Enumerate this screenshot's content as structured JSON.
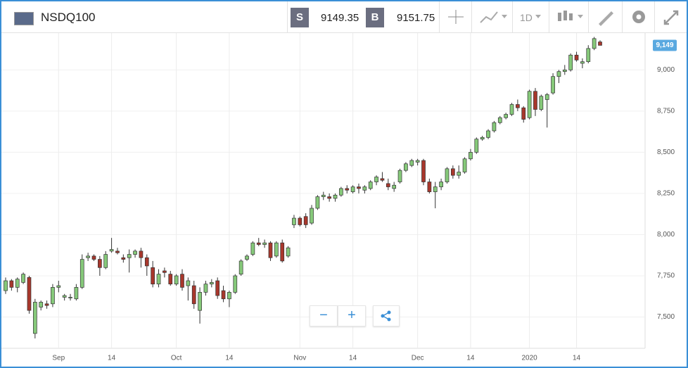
{
  "toolbar": {
    "symbol": "NSDQ100",
    "sell_letter": "S",
    "sell_price": "9149.35",
    "buy_letter": "B",
    "buy_price": "9151.75",
    "timeframe": "1D"
  },
  "chart_data": {
    "type": "candlestick",
    "categories": [
      null,
      null,
      null,
      null,
      null,
      null,
      null,
      null,
      null,
      "Sep",
      null,
      null,
      null,
      null,
      null,
      null,
      null,
      null,
      "14",
      null,
      null,
      null,
      null,
      null,
      null,
      null,
      null,
      null,
      null,
      "Oct",
      null,
      null,
      null,
      null,
      null,
      null,
      null,
      null,
      "14",
      null,
      null,
      null,
      null,
      null,
      null,
      null,
      null,
      null,
      null,
      null,
      "Nov",
      null,
      null,
      null,
      null,
      null,
      null,
      null,
      null,
      "14",
      null,
      null,
      null,
      null,
      null,
      null,
      null,
      null,
      null,
      null,
      "Dec",
      null,
      null,
      null,
      null,
      null,
      null,
      null,
      null,
      "14",
      null,
      null,
      null,
      null,
      null,
      null,
      null,
      null,
      null,
      "2020",
      null,
      null,
      null,
      null,
      null,
      null,
      null,
      "14",
      null,
      null,
      null,
      null
    ],
    "open": [
      7660,
      7720,
      7680,
      7710,
      7740,
      7400,
      7560,
      7580,
      7580,
      7680,
      7620,
      7620,
      7610,
      7680,
      7860,
      7870,
      7850,
      7800,
      7900,
      7900,
      7860,
      7860,
      7880,
      7900,
      7860,
      7800,
      7700,
      7780,
      7760,
      7700,
      7760,
      7690,
      7690,
      7540,
      7650,
      7700,
      7720,
      7660,
      7610,
      7650,
      7760,
      7850,
      7880,
      7950,
      7940,
      7950,
      7870,
      7950,
      7870,
      8060,
      8100,
      8110,
      8070,
      8160,
      8230,
      8230,
      8220,
      8240,
      8280,
      8260,
      8290,
      8270,
      8280,
      8320,
      8340,
      8310,
      8280,
      8320,
      8390,
      8420,
      8440,
      8450,
      8320,
      8260,
      8290,
      8320,
      8400,
      8360,
      8380,
      8460,
      8500,
      8580,
      8590,
      8630,
      8680,
      8710,
      8730,
      8790,
      8770,
      8710,
      8870,
      8760,
      8820,
      8860,
      8960,
      8990,
      9000,
      9090,
      9040,
      9050,
      9130,
      9170
    ],
    "high": [
      7740,
      7730,
      7740,
      7770,
      7750,
      7610,
      7600,
      7600,
      7700,
      7720,
      7640,
      7640,
      7700,
      7880,
      7890,
      7880,
      7870,
      7900,
      7980,
      7920,
      7880,
      7910,
      7910,
      7920,
      7880,
      7840,
      7790,
      7800,
      7780,
      7760,
      7790,
      7740,
      7720,
      7680,
      7720,
      7730,
      7740,
      7690,
      7660,
      7760,
      7850,
      7880,
      7960,
      7980,
      7970,
      7960,
      7960,
      7970,
      7930,
      8120,
      8110,
      8130,
      8180,
      8240,
      8260,
      8250,
      8250,
      8290,
      8300,
      8300,
      8310,
      8300,
      8330,
      8360,
      8380,
      8340,
      8320,
      8400,
      8440,
      8460,
      8460,
      8460,
      8340,
      8320,
      8340,
      8410,
      8420,
      8420,
      8470,
      8520,
      8590,
      8600,
      8640,
      8690,
      8720,
      8740,
      8800,
      8820,
      8780,
      8880,
      8890,
      8850,
      8860,
      8980,
      9000,
      9030,
      9100,
      9110,
      9070,
      9150,
      9200,
      9180
    ],
    "low": [
      7640,
      7660,
      7650,
      7700,
      7520,
      7370,
      7540,
      7550,
      7560,
      7650,
      7600,
      7600,
      7600,
      7670,
      7840,
      7840,
      7750,
      7790,
      7890,
      7880,
      7830,
      7770,
      7860,
      7800,
      7750,
      7680,
      7680,
      7740,
      7690,
      7690,
      7660,
      7600,
      7550,
      7460,
      7630,
      7680,
      7610,
      7590,
      7560,
      7640,
      7750,
      7840,
      7870,
      7930,
      7920,
      7840,
      7860,
      7830,
      7860,
      8040,
      8050,
      8040,
      8060,
      8150,
      8210,
      8200,
      8200,
      8230,
      8250,
      8250,
      8250,
      8250,
      8270,
      8300,
      8320,
      8270,
      8260,
      8310,
      8380,
      8410,
      8420,
      8300,
      8250,
      8160,
      8270,
      8310,
      8340,
      8340,
      8370,
      8450,
      8490,
      8570,
      8580,
      8620,
      8670,
      8700,
      8720,
      8750,
      8680,
      8700,
      8720,
      8750,
      8650,
      8850,
      8920,
      8970,
      8990,
      9050,
      9010,
      9040,
      9120,
      9150
    ],
    "close": [
      7720,
      7680,
      7730,
      7760,
      7540,
      7590,
      7590,
      7570,
      7680,
      7690,
      7630,
      7620,
      7680,
      7850,
      7870,
      7850,
      7800,
      7880,
      7910,
      7890,
      7850,
      7880,
      7900,
      7860,
      7810,
      7700,
      7760,
      7770,
      7700,
      7750,
      7680,
      7720,
      7580,
      7650,
      7700,
      7710,
      7630,
      7610,
      7650,
      7750,
      7840,
      7870,
      7950,
      7940,
      7950,
      7860,
      7950,
      7840,
      7920,
      8100,
      8060,
      8060,
      8160,
      8230,
      8240,
      8220,
      8240,
      8280,
      8270,
      8290,
      8280,
      8290,
      8320,
      8350,
      8330,
      8290,
      8300,
      8390,
      8430,
      8450,
      8450,
      8320,
      8260,
      8290,
      8320,
      8400,
      8360,
      8380,
      8460,
      8500,
      8580,
      8590,
      8630,
      8680,
      8710,
      8730,
      8790,
      8770,
      8700,
      8870,
      8760,
      8840,
      8850,
      8960,
      8990,
      9000,
      9090,
      9060,
      9050,
      9130,
      9190,
      9149
    ],
    "up_color": "#86c97a",
    "down_color": "#a8372c",
    "ylim": [
      7310,
      9215
    ],
    "yticks": [
      {
        "value": 7500,
        "label": "7,500"
      },
      {
        "value": 7750,
        "label": "7,750"
      },
      {
        "value": 8000,
        "label": "8,000"
      },
      {
        "value": 8250,
        "label": "8,250"
      },
      {
        "value": 8500,
        "label": "8,500"
      },
      {
        "value": 8750,
        "label": "8,750"
      },
      {
        "value": 9000,
        "label": "9,000"
      }
    ],
    "last_price": {
      "value": 9149,
      "label": "9,149"
    },
    "grid": true
  }
}
